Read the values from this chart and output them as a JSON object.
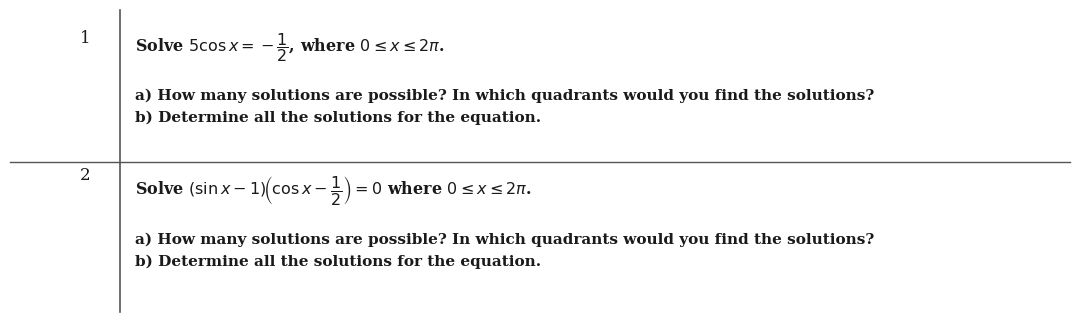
{
  "bg_color": "#ffffff",
  "cell_bg": "#ffffff",
  "line_color": "#555555",
  "text_color": "#1a1a1a",
  "num_color": "#1a1a1a",
  "row1_num": "1",
  "row2_num": "2",
  "row1_eq": "Solve $5\\cos x = -\\dfrac{1}{2}$, where $0 \\leq x \\leq 2\\pi$.",
  "row1_a": "a) How many solutions are possible? In which quadrants would you find the solutions?",
  "row1_b": "b) Determine all the solutions for the equation.",
  "row2_eq": "Solve $(\\sin x - 1)\\!\\left(\\cos x - \\dfrac{1}{2}\\right) = 0$ where $0 \\leq x \\leq 2\\pi$.",
  "row2_a": "a) How many solutions are possible? In which quadrants would you find the solutions?",
  "row2_b": "b) Determine all the solutions for the equation.",
  "figsize": [
    10.8,
    3.22
  ],
  "dpi": 100
}
